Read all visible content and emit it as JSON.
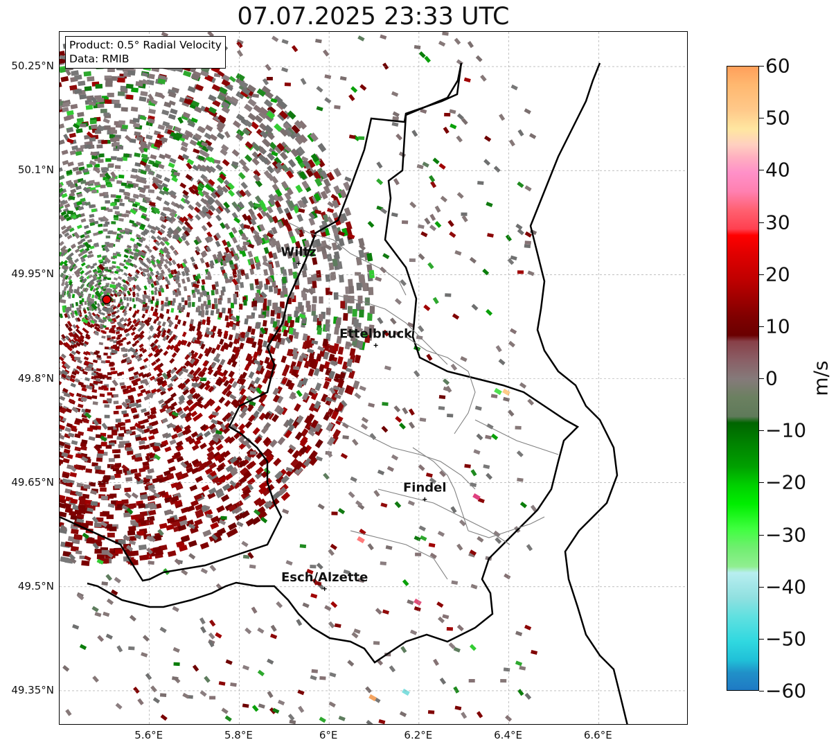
{
  "title": "07.07.2025 23:33 UTC",
  "info": {
    "product": "Product: 0.5° Radial Velocity",
    "data": "Data: RMIB"
  },
  "axes": {
    "lon_range": [
      5.4,
      6.8
    ],
    "lat_range": [
      49.3,
      50.3
    ],
    "lat_ticks": [
      "50.25°N",
      "50.1°N",
      "49.95°N",
      "49.8°N",
      "49.65°N",
      "49.5°N",
      "49.35°N"
    ],
    "lon_ticks": [
      "5.6°E",
      "5.8°E",
      "6°E",
      "6.2°E",
      "6.4°E",
      "6.6°E"
    ],
    "grid": true
  },
  "cities": [
    {
      "name": "Wiltz",
      "lon": 5.932,
      "lat": 49.966
    },
    {
      "name": "Ettelbruck",
      "lon": 6.104,
      "lat": 49.848
    },
    {
      "name": "Findel",
      "lon": 6.213,
      "lat": 49.626
    },
    {
      "name": "Esch/Alzette",
      "lon": 5.99,
      "lat": 49.497
    }
  ],
  "radar_site": {
    "lon": 5.505,
    "lat": 49.914,
    "color": "#e00000"
  },
  "colorbar": {
    "unit": "m/s",
    "range": [
      -60,
      60
    ],
    "ticks": [
      "60",
      "50",
      "40",
      "30",
      "20",
      "10",
      "0",
      "−10",
      "−20",
      "−30",
      "−40",
      "−50",
      "−60"
    ]
  }
}
